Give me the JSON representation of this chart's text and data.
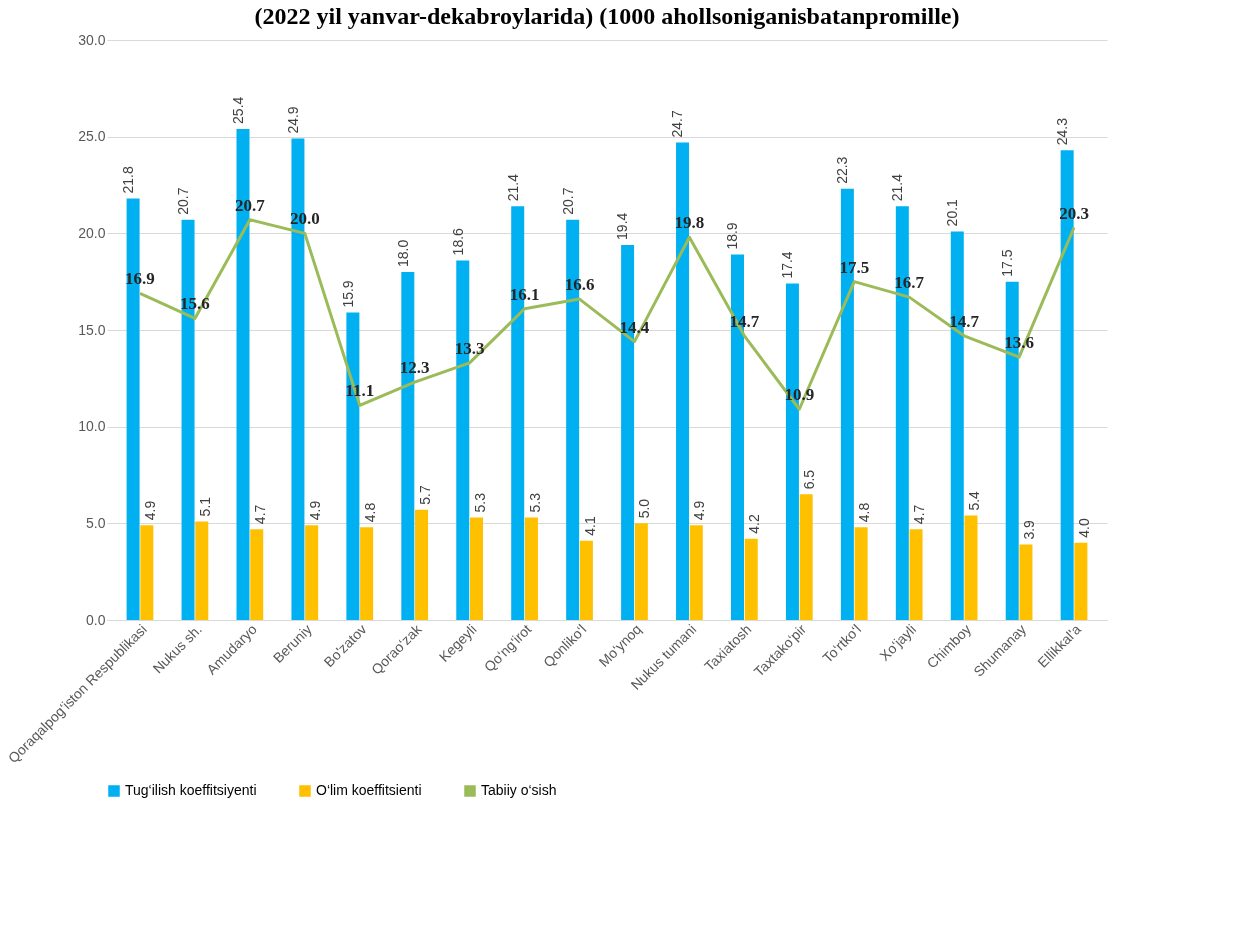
{
  "chart_data": {
    "type": "bar",
    "title": "(2022 yil yanvar-dekabroylarida) (1000 ahollsoniganisbatanpromille)",
    "categories": [
      "Qoraqalpog‘iston Respublikasi",
      "Nukus sh.",
      "Amudaryo",
      "Beruniy",
      "Bo'zatov",
      "Qorao‘zak",
      "Kegeyli",
      "Qo‘ng‘irot",
      "Qonliko‘l",
      "Mo‘ynoq",
      "Nukus tumani",
      "Taxiatosh",
      "Taxtako‘pir",
      "To‘rtko‘l",
      "Xo‘jayli",
      "Chimboy",
      "Shumanay",
      "Ellikkal'a"
    ],
    "series": [
      {
        "name": "Tug‘ilish koeffitsiyenti",
        "color": "#00b0f0",
        "values": [
          21.8,
          20.7,
          25.4,
          24.9,
          15.9,
          18.0,
          18.6,
          21.4,
          20.7,
          19.4,
          24.7,
          18.9,
          17.4,
          22.3,
          21.4,
          20.1,
          17.5,
          24.3
        ],
        "value_labels": [
          "21.8",
          "20.7",
          "25.4",
          "24.9",
          "15.9",
          "18.0",
          "18.6",
          "21.4",
          "20.7",
          "19.4",
          "24.7",
          "18.9",
          "17.4",
          "22.3",
          "21.4",
          "20.1",
          "17.5",
          "24.3"
        ]
      },
      {
        "name": "O‘lim koeffitsienti",
        "color": "#ffc000",
        "values": [
          4.9,
          5.1,
          4.7,
          4.9,
          4.8,
          5.7,
          5.3,
          5.3,
          4.1,
          5.0,
          4.9,
          4.2,
          6.5,
          4.8,
          4.7,
          5.4,
          3.9,
          4.0
        ],
        "value_labels": [
          "4.9",
          "5.1",
          "4.7",
          "4.9",
          "4.8",
          "5.7",
          "5.3",
          "5.3",
          "4.1",
          "5.0",
          "4.9",
          "4.2",
          "6.5",
          "4.8",
          "4.7",
          "5.4",
          "3.9",
          "4.0"
        ]
      },
      {
        "name": "Tabiiy o‘sish",
        "type": "line",
        "color": "#9bbb59",
        "values": [
          16.9,
          15.6,
          20.7,
          20.0,
          11.1,
          12.3,
          13.3,
          16.1,
          16.6,
          14.4,
          19.8,
          14.7,
          10.9,
          17.5,
          16.7,
          14.7,
          13.6,
          20.3
        ],
        "value_labels": [
          "16.9",
          "15.6",
          "20.7",
          "20.0",
          "11.1",
          "12.3",
          "13.3",
          "16.1",
          "16.6",
          "14.4",
          "19.8",
          "14.7",
          "10.9",
          "17.5",
          "16.7",
          "14.7",
          "13.6",
          "20.3"
        ]
      }
    ],
    "ylim": [
      0,
      30
    ],
    "yticks": [
      {
        "value": 0,
        "label": "0.0"
      },
      {
        "value": 5,
        "label": "5.0"
      },
      {
        "value": 10,
        "label": "10.0"
      },
      {
        "value": 15,
        "label": "15.0"
      },
      {
        "value": 20,
        "label": "20.0"
      },
      {
        "value": 25,
        "label": "25.0"
      },
      {
        "value": 30,
        "label": "30.0"
      }
    ],
    "grid": "y",
    "legend": "bottom"
  }
}
